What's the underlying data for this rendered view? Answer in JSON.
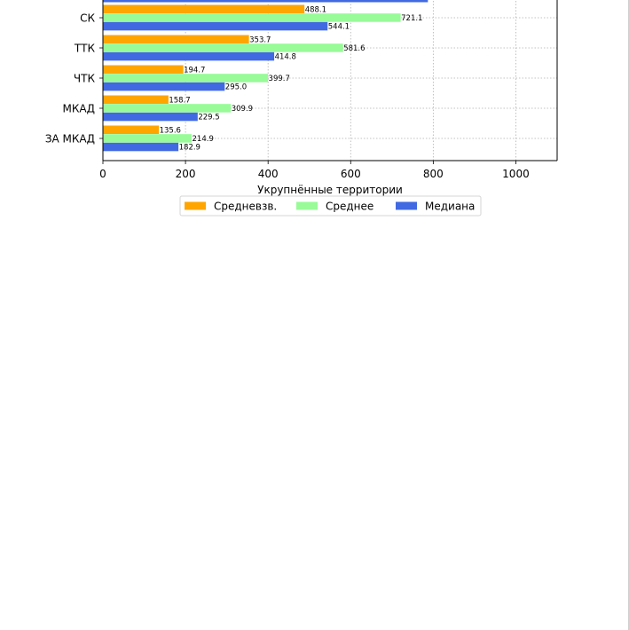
{
  "chart_data": {
    "type": "bar",
    "orientation": "horizontal",
    "xlabel": "Укрупнённые территории",
    "ylabel": "",
    "xlim": [
      0,
      1100
    ],
    "xticks": [
      0,
      200,
      400,
      600,
      800,
      1000
    ],
    "grid": true,
    "legend_position": "bottom-center",
    "categories": [
      "СК",
      "ТТК",
      "ЧТК",
      "МКАД",
      "ЗА МКАД"
    ],
    "series": [
      {
        "name": "Средневзв.",
        "color": "#FFA500",
        "values": [
          488.1,
          353.7,
          194.7,
          158.7,
          135.6
        ]
      },
      {
        "name": "Среднее",
        "color": "#98FB98",
        "values": [
          721.1,
          581.6,
          399.7,
          309.9,
          214.9
        ]
      },
      {
        "name": "Медиана",
        "color": "#4169E1",
        "values": [
          544.1,
          414.8,
          295.0,
          229.5,
          182.9
        ]
      }
    ],
    "partial_top_bar": {
      "series": "Медиана",
      "value": 787
    }
  }
}
